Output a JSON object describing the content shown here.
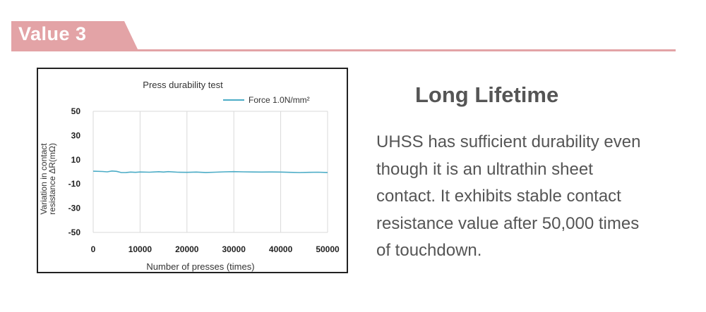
{
  "section": {
    "label": "Value 3"
  },
  "feature": {
    "title": "Long Lifetime",
    "lines": [
      "UHSS has sufficient durability even",
      "though it is an ultrathin sheet",
      "contact. It exhibits stable contact",
      "resistance value after 50,000 times",
      "of touchdown."
    ]
  },
  "colors": {
    "accent": "#e3a3a6",
    "series": "#4bacc6",
    "text": "#555555"
  },
  "chart_data": {
    "type": "line",
    "title": "Press durability test",
    "xlabel": "Number of presses (times)",
    "ylabel_lines": [
      "Variation in contact",
      "resistance ΔR(mΩ)"
    ],
    "xlim": [
      0,
      50000
    ],
    "ylim": [
      -50,
      50
    ],
    "x_ticks": [
      0,
      10000,
      20000,
      30000,
      40000,
      50000
    ],
    "x_tick_labels": [
      "0",
      "10000",
      "20000",
      "30000",
      "40000",
      "50000"
    ],
    "y_ticks": [
      50,
      30,
      10,
      -10,
      -30,
      -50
    ],
    "y_tick_labels": [
      "50",
      "30",
      "10",
      "-10",
      "-30",
      "-50"
    ],
    "grid": true,
    "legend_position": "top-right",
    "series": [
      {
        "name": "Force 1.0N/mm²",
        "x": [
          0,
          2000,
          3000,
          4000,
          5000,
          6000,
          7000,
          8000,
          9000,
          10000,
          12000,
          14000,
          15000,
          16000,
          18000,
          20000,
          22000,
          24000,
          26000,
          28000,
          30000,
          32000,
          34000,
          36000,
          38000,
          40000,
          42000,
          44000,
          46000,
          48000,
          50000
        ],
        "y": [
          0.5,
          0.3,
          0,
          0.7,
          0.4,
          -0.6,
          -0.5,
          -0.2,
          -0.4,
          -0.1,
          -0.3,
          0.1,
          -0.2,
          0.2,
          -0.3,
          -0.4,
          -0.2,
          -0.5,
          -0.3,
          0,
          0.2,
          0,
          -0.1,
          -0.2,
          -0.1,
          -0.2,
          -0.4,
          -0.6,
          -0.4,
          -0.3,
          -0.5
        ]
      }
    ]
  }
}
